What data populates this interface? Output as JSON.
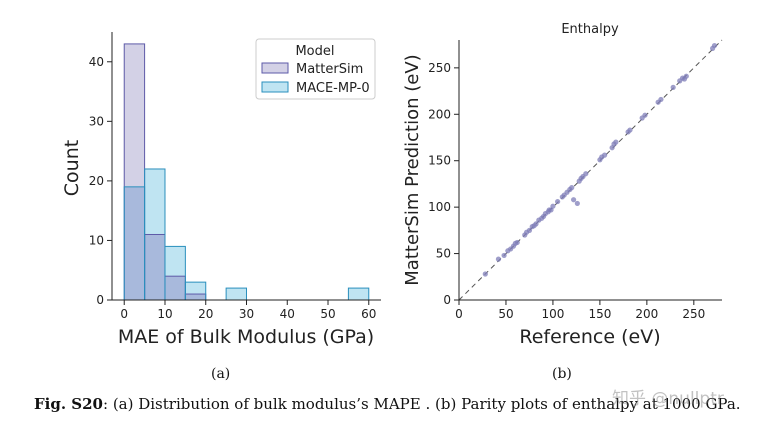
{
  "colors": {
    "mattersim_fill": "#d3d1e6",
    "mattersim_edge": "#5d5aa8",
    "mace_fill": "#bfe4f2",
    "mace_edge": "#2a8fbd",
    "overlap_fill": "#a8b9dc",
    "scatter_point": "#7f7db8",
    "diagonal": "#555555"
  },
  "panel_labels": {
    "a": "(a)",
    "b": "(b)"
  },
  "caption": {
    "bold": "Fig. S20",
    "text": ": (a) Distribution of bulk modulus’s MAPE . (b) Parity plots of enthalpy at 1000 GPa."
  },
  "watermark": "知乎 @nullptr",
  "chart_data": [
    {
      "type": "bar",
      "xlabel": "MAE of Bulk Modulus (GPa)",
      "ylabel": "Count",
      "xlim": [
        -3,
        63
      ],
      "ylim": [
        0,
        45
      ],
      "xticks": [
        0,
        10,
        20,
        30,
        40,
        50,
        60
      ],
      "yticks": [
        0,
        10,
        20,
        30,
        40
      ],
      "bin_width": 5,
      "legend": {
        "title": "Model",
        "placement": "top-right"
      },
      "series": [
        {
          "name": "MatterSim",
          "bins": [
            0,
            5,
            10,
            15
          ],
          "values": [
            43,
            11,
            4,
            1
          ]
        },
        {
          "name": "MACE-MP-0",
          "bins": [
            0,
            5,
            10,
            15,
            25,
            55
          ],
          "values": [
            19,
            22,
            9,
            3,
            2,
            2
          ]
        }
      ]
    },
    {
      "type": "scatter",
      "title": "Enthalpy",
      "xlabel": "Reference (eV)",
      "ylabel": "MatterSim Prediction (eV)",
      "xlim": [
        0,
        280
      ],
      "ylim": [
        0,
        280
      ],
      "xticks": [
        0,
        50,
        100,
        150,
        200,
        250
      ],
      "yticks": [
        0,
        50,
        100,
        150,
        200,
        250
      ],
      "diagonal": true,
      "points": [
        [
          28,
          28
        ],
        [
          42,
          44
        ],
        [
          48,
          48
        ],
        [
          52,
          53
        ],
        [
          55,
          55
        ],
        [
          58,
          58
        ],
        [
          60,
          61
        ],
        [
          62,
          62
        ],
        [
          70,
          70
        ],
        [
          72,
          73
        ],
        [
          75,
          75
        ],
        [
          78,
          79
        ],
        [
          80,
          80
        ],
        [
          82,
          82
        ],
        [
          85,
          86
        ],
        [
          88,
          88
        ],
        [
          90,
          90
        ],
        [
          92,
          93
        ],
        [
          95,
          95
        ],
        [
          96,
          97
        ],
        [
          98,
          97
        ],
        [
          100,
          101
        ],
        [
          105,
          106
        ],
        [
          110,
          111
        ],
        [
          112,
          113
        ],
        [
          115,
          116
        ],
        [
          118,
          119
        ],
        [
          120,
          121
        ],
        [
          122,
          108
        ],
        [
          126,
          104
        ],
        [
          128,
          128
        ],
        [
          130,
          131
        ],
        [
          132,
          133
        ],
        [
          135,
          136
        ],
        [
          150,
          151
        ],
        [
          152,
          154
        ],
        [
          155,
          156
        ],
        [
          163,
          164
        ],
        [
          165,
          168
        ],
        [
          167,
          170
        ],
        [
          180,
          181
        ],
        [
          182,
          183
        ],
        [
          195,
          196
        ],
        [
          198,
          199
        ],
        [
          212,
          213
        ],
        [
          215,
          216
        ],
        [
          228,
          229
        ],
        [
          235,
          236
        ],
        [
          238,
          239
        ],
        [
          240,
          238
        ],
        [
          242,
          241
        ],
        [
          270,
          271
        ],
        [
          272,
          274
        ]
      ]
    }
  ]
}
